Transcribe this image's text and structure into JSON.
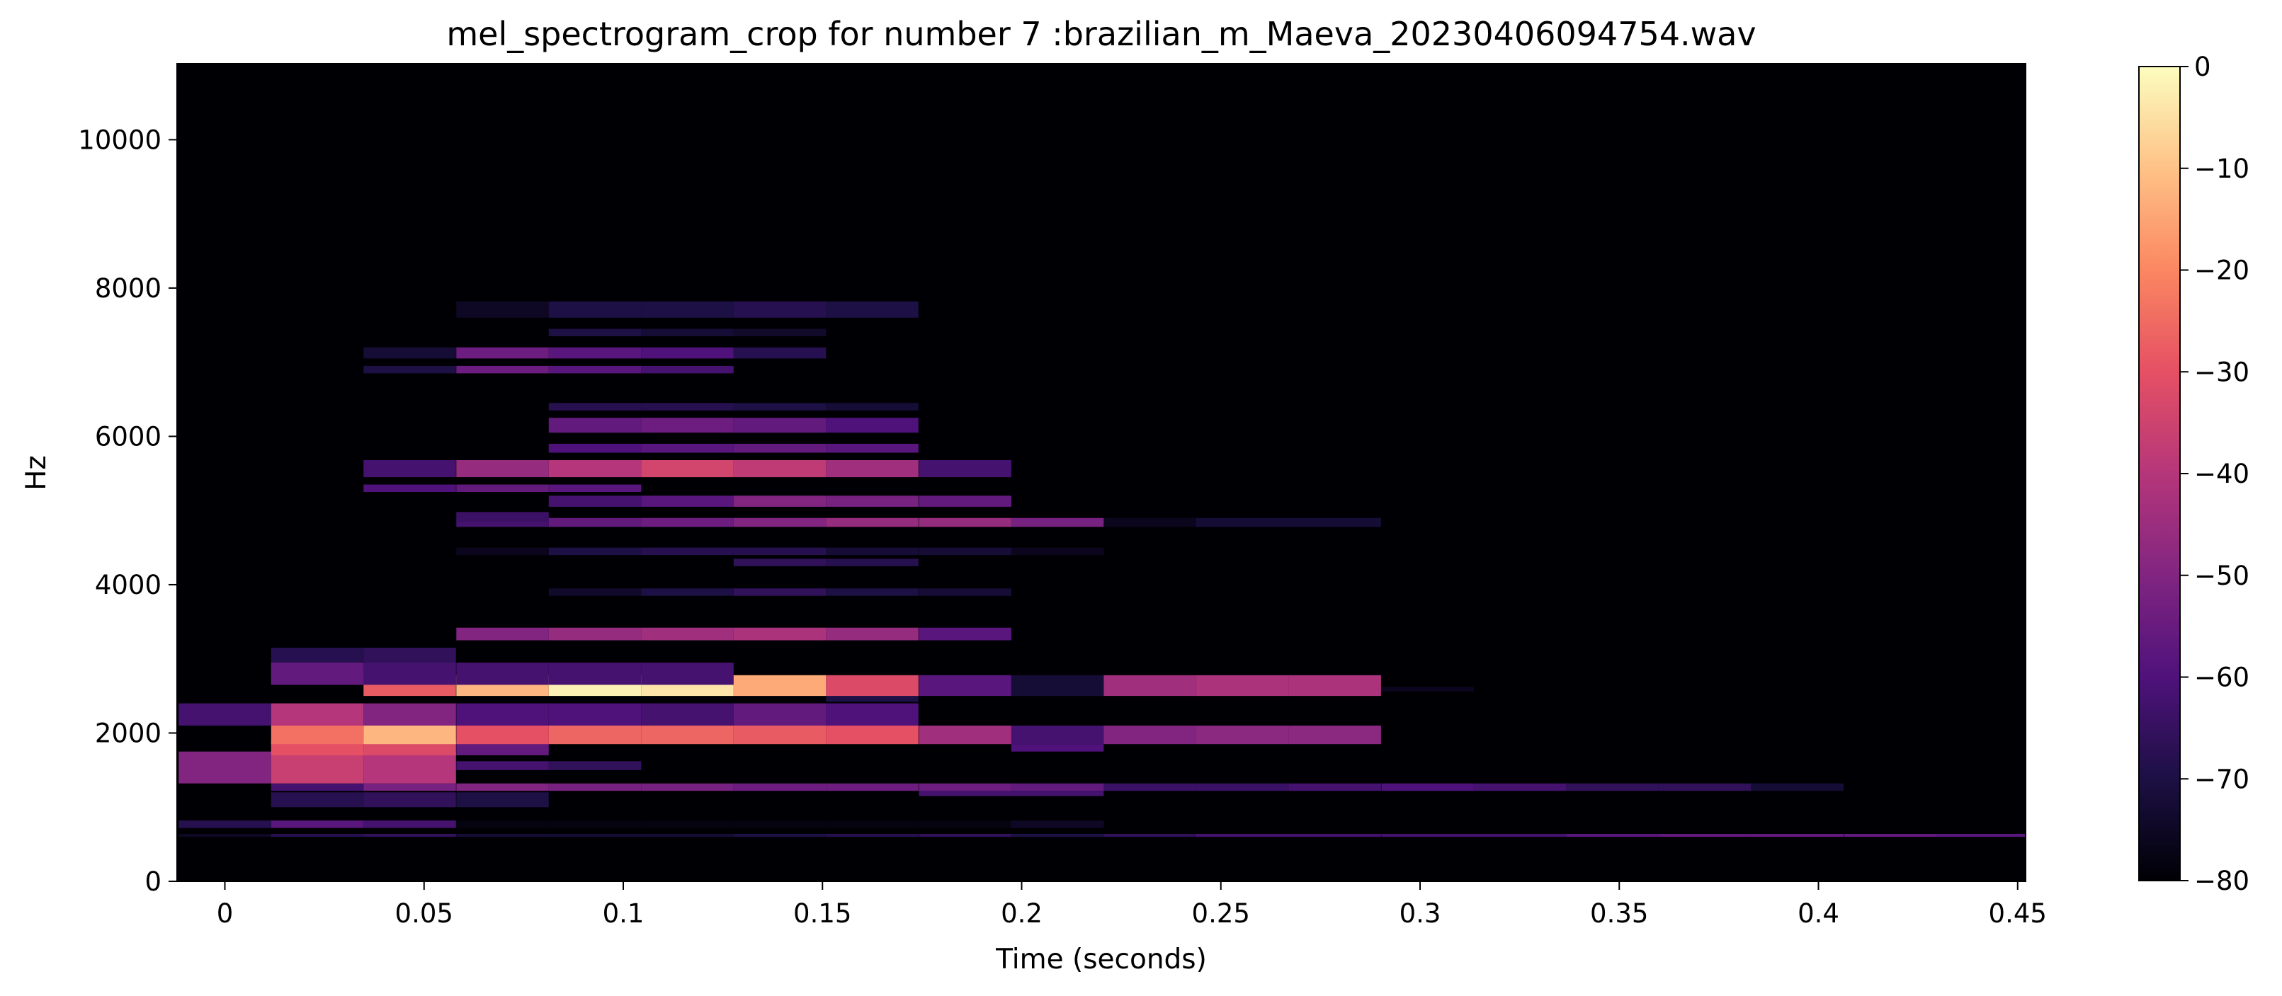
{
  "chart_data": {
    "type": "heatmap",
    "title": "mel_spectrogram_crop for number 7 :brazilian_m_Maeva_20230406094754.wav",
    "xlabel": "Time (seconds)",
    "ylabel": "Hz",
    "xlim": [
      -0.012,
      0.452
    ],
    "ylim": [
      0,
      11025
    ],
    "x_ticks": [
      {
        "value": 0,
        "label": "0"
      },
      {
        "value": 0.05,
        "label": "0.05"
      },
      {
        "value": 0.1,
        "label": "0.1"
      },
      {
        "value": 0.15,
        "label": "0.15"
      },
      {
        "value": 0.2,
        "label": "0.2"
      },
      {
        "value": 0.25,
        "label": "0.25"
      },
      {
        "value": 0.3,
        "label": "0.3"
      },
      {
        "value": 0.35,
        "label": "0.35"
      },
      {
        "value": 0.4,
        "label": "0.4"
      },
      {
        "value": 0.45,
        "label": "0.45"
      }
    ],
    "y_ticks": [
      {
        "value": 0,
        "label": "0"
      },
      {
        "value": 2000,
        "label": "2000"
      },
      {
        "value": 4000,
        "label": "4000"
      },
      {
        "value": 6000,
        "label": "6000"
      },
      {
        "value": 8000,
        "label": "8000"
      },
      {
        "value": 10000,
        "label": "10000"
      }
    ],
    "colorbar": {
      "range": [
        -80,
        0
      ],
      "ticks": [
        {
          "value": 0,
          "label": "0"
        },
        {
          "value": -10,
          "label": "−10"
        },
        {
          "value": -20,
          "label": "−20"
        },
        {
          "value": -30,
          "label": "−30"
        },
        {
          "value": -40,
          "label": "−40"
        },
        {
          "value": -50,
          "label": "−50"
        },
        {
          "value": -60,
          "label": "−60"
        },
        {
          "value": -70,
          "label": "−70"
        },
        {
          "value": -80,
          "label": "−80"
        }
      ],
      "colormap": "magma",
      "colormap_stops": [
        "#000004",
        "#1c1044",
        "#4f127b",
        "#812581",
        "#b5367a",
        "#e55064",
        "#fb8761",
        "#fec287",
        "#fcfdbf"
      ]
    },
    "background_db": -80,
    "frame_times": [
      0,
      0.0232,
      0.0464,
      0.0697,
      0.0929,
      0.1161,
      0.1393,
      0.1625,
      0.1858,
      0.209,
      0.2322,
      0.2554,
      0.2786,
      0.3019,
      0.3251,
      0.3483,
      0.3715,
      0.3947,
      0.418,
      0.4412,
      0.4644
    ],
    "bands": [
      {
        "f0": 600,
        "f1": 640,
        "frames": [
          0,
          20
        ],
        "db": [
          -75,
          -68,
          -66,
          -72,
          -72,
          -72,
          -70,
          -68,
          -66,
          -70,
          -66,
          -62,
          -62,
          -62,
          -62,
          -58,
          -56,
          -56,
          -56,
          -58,
          -60
        ]
      },
      {
        "f0": 720,
        "f1": 820,
        "frames": [
          0,
          9
        ],
        "db": [
          -68,
          -58,
          -62,
          -78,
          -78,
          -78,
          -78,
          -78,
          -78,
          -75
        ]
      },
      {
        "f0": 1000,
        "f1": 1200,
        "frames": [
          1,
          3
        ],
        "db": [
          -68,
          -66,
          -70
        ]
      },
      {
        "f0": 1150,
        "f1": 1220,
        "frames": [
          8,
          9
        ],
        "db": [
          -62,
          -62
        ]
      },
      {
        "f0": 1220,
        "f1": 1320,
        "frames": [
          1,
          17
        ],
        "db": [
          -62,
          -52,
          -50,
          -52,
          -52,
          -54,
          -54,
          -54,
          -56,
          -64,
          -64,
          -62,
          -60,
          -62,
          -66,
          -66,
          -72
        ]
      },
      {
        "f0": 1320,
        "f1": 1750,
        "frames": [
          0,
          2
        ],
        "db": [
          -50,
          -36,
          -40
        ]
      },
      {
        "f0": 1500,
        "f1": 1620,
        "frames": [
          3,
          4
        ],
        "db": [
          -62,
          -66
        ]
      },
      {
        "f0": 1700,
        "f1": 1900,
        "frames": [
          1,
          3
        ],
        "db": [
          -30,
          -32,
          -56
        ]
      },
      {
        "f0": 1750,
        "f1": 1850,
        "frames": [
          9,
          9
        ],
        "db": [
          -60
        ]
      },
      {
        "f0": 1850,
        "f1": 2100,
        "frames": [
          1,
          12
        ],
        "db": [
          -24,
          -12,
          -30,
          -26,
          -26,
          -28,
          -30,
          -44,
          -62,
          -50,
          -48,
          -48
        ]
      },
      {
        "f0": 2100,
        "f1": 2400,
        "frames": [
          0,
          7
        ],
        "db": [
          -62,
          -40,
          -50,
          -60,
          -60,
          -62,
          -56,
          -60
        ]
      },
      {
        "f0": 2420,
        "f1": 2560,
        "frames": [
          7,
          7
        ],
        "db": [
          -70
        ]
      },
      {
        "f0": 2500,
        "f1": 2780,
        "frames": [
          2,
          12
        ],
        "db": [
          -28,
          -12,
          -2,
          -4,
          -14,
          -32,
          -58,
          -72,
          -44,
          -42,
          -42
        ]
      },
      {
        "f0": 2560,
        "f1": 2620,
        "frames": [
          13,
          13
        ],
        "db": [
          -76
        ]
      },
      {
        "f0": 2650,
        "f1": 2950,
        "frames": [
          1,
          5
        ],
        "db": [
          -56,
          -62,
          -62,
          -62,
          -62
        ]
      },
      {
        "f0": 2950,
        "f1": 3150,
        "frames": [
          1,
          2
        ],
        "db": [
          -68,
          -66
        ]
      },
      {
        "f0": 3250,
        "f1": 3420,
        "frames": [
          3,
          8
        ],
        "db": [
          -50,
          -46,
          -44,
          -42,
          -46,
          -58
        ]
      },
      {
        "f0": 3850,
        "f1": 3950,
        "frames": [
          4,
          8
        ],
        "db": [
          -74,
          -70,
          -66,
          -70,
          -72
        ]
      },
      {
        "f0": 4250,
        "f1": 4350,
        "frames": [
          6,
          7
        ],
        "db": [
          -66,
          -68
        ]
      },
      {
        "f0": 4400,
        "f1": 4500,
        "frames": [
          3,
          9
        ],
        "db": [
          -76,
          -70,
          -68,
          -68,
          -72,
          -72,
          -76
        ]
      },
      {
        "f0": 4780,
        "f1": 4900,
        "frames": [
          3,
          12
        ],
        "db": [
          -62,
          -56,
          -54,
          -50,
          -46,
          -46,
          -52,
          -76,
          -72,
          -72
        ]
      },
      {
        "f0": 4850,
        "f1": 4980,
        "frames": [
          3,
          3
        ],
        "db": [
          -64
        ]
      },
      {
        "f0": 5050,
        "f1": 5200,
        "frames": [
          4,
          8
        ],
        "db": [
          -62,
          -58,
          -50,
          -52,
          -56
        ]
      },
      {
        "f0": 5250,
        "f1": 5350,
        "frames": [
          2,
          4
        ],
        "db": [
          -60,
          -56,
          -58
        ]
      },
      {
        "f0": 5450,
        "f1": 5680,
        "frames": [
          2,
          8
        ],
        "db": [
          -62,
          -46,
          -40,
          -34,
          -38,
          -44,
          -62
        ]
      },
      {
        "f0": 5780,
        "f1": 5900,
        "frames": [
          4,
          7
        ],
        "db": [
          -60,
          -58,
          -56,
          -58
        ]
      },
      {
        "f0": 6050,
        "f1": 6250,
        "frames": [
          4,
          7
        ],
        "db": [
          -56,
          -54,
          -56,
          -60
        ]
      },
      {
        "f0": 6350,
        "f1": 6450,
        "frames": [
          4,
          7
        ],
        "db": [
          -68,
          -68,
          -70,
          -72
        ]
      },
      {
        "f0": 6850,
        "f1": 6950,
        "frames": [
          2,
          5
        ],
        "db": [
          -70,
          -54,
          -58,
          -62
        ]
      },
      {
        "f0": 7050,
        "f1": 7200,
        "frames": [
          2,
          6
        ],
        "db": [
          -72,
          -54,
          -58,
          -60,
          -68
        ]
      },
      {
        "f0": 7350,
        "f1": 7450,
        "frames": [
          4,
          6
        ],
        "db": [
          -70,
          -72,
          -74
        ]
      },
      {
        "f0": 7600,
        "f1": 7820,
        "frames": [
          3,
          7
        ],
        "db": [
          -75,
          -70,
          -70,
          -68,
          -70
        ]
      }
    ]
  }
}
